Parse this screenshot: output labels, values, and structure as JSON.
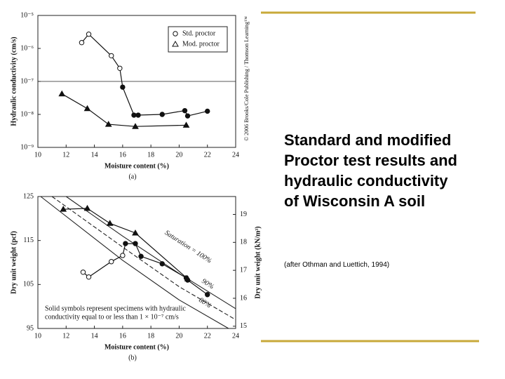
{
  "chart_data": [
    {
      "type": "line",
      "subtitle": "(a)",
      "credit": "© 2006 Brooks/Cole Publishing / Thomson Learning™",
      "xlabel": "Moisture content (%)",
      "ylabel": "Hydraulic conductivity (cm/s)",
      "xlim": [
        10,
        24
      ],
      "xticks": [
        10,
        12,
        14,
        16,
        18,
        20,
        22,
        24
      ],
      "log_y": true,
      "ylim": [
        1e-09,
        1e-05
      ],
      "yticks": [
        {
          "value": 1e-09,
          "label": "10⁻⁹"
        },
        {
          "value": 1e-08,
          "label": "10⁻⁸"
        },
        {
          "value": 1e-07,
          "label": "10⁻⁷"
        },
        {
          "value": 1e-06,
          "label": "10⁻⁶"
        },
        {
          "value": 1e-05,
          "label": "10⁻⁵"
        }
      ],
      "hline": 1e-07,
      "legend": "upper right",
      "series": [
        {
          "name": "Std. proctor",
          "color": "#111111",
          "marker": "circle",
          "x": [
            13.1,
            13.6,
            15.2,
            15.8,
            16.0,
            16.8,
            17.1,
            18.8,
            20.4,
            20.6,
            22.0
          ],
          "values": [
            1.5e-06,
            2.7e-06,
            6e-07,
            2.5e-07,
            6.7e-08,
            9.5e-09,
            9.5e-09,
            1e-08,
            1.3e-08,
            9e-09,
            1.25e-08
          ],
          "filled": [
            false,
            false,
            false,
            false,
            true,
            true,
            true,
            true,
            true,
            true,
            true
          ]
        },
        {
          "name": "Mod. proctor",
          "color": "#111111",
          "marker": "triangle",
          "x": [
            11.7,
            13.5,
            15.0,
            16.9,
            20.5
          ],
          "values": [
            4.2e-08,
            1.5e-08,
            5e-09,
            4.3e-09,
            4.7e-09
          ],
          "filled": [
            true,
            true,
            true,
            true,
            true
          ]
        }
      ]
    },
    {
      "type": "line",
      "subtitle": "(b)",
      "xlabel": "Moisture content (%)",
      "ylabel": "Dry unit weight (pcf)",
      "y2label": "Dry unit weight (kN/m³)",
      "xlim": [
        10,
        24
      ],
      "xticks": [
        10,
        12,
        14,
        16,
        18,
        20,
        22,
        24
      ],
      "ylim": [
        95,
        125
      ],
      "yticks": [
        95,
        105,
        115,
        125
      ],
      "y2lim": [
        14.92,
        19.64
      ],
      "y2ticks": [
        15,
        16,
        17,
        18,
        19
      ],
      "note": [
        "Solid symbols represent specimens with hydraulic",
        "conductivity equal to or less than 1 × 10⁻⁷ cm/s"
      ],
      "curves": [
        {
          "label": "Saturation = 100%",
          "dash": false,
          "x": [
            12,
            16,
            20,
            24
          ],
          "values": [
            125,
            116,
            107.5,
            99.5
          ]
        },
        {
          "label": "90%",
          "dash": true,
          "x": [
            11,
            16,
            20,
            24
          ],
          "values": [
            125,
            113.5,
            104.5,
            97
          ]
        },
        {
          "label": "80%",
          "dash": false,
          "x": [
            10.2,
            16,
            20,
            23.5
          ],
          "values": [
            125,
            110.5,
            101.5,
            95
          ]
        }
      ],
      "series": [
        {
          "color": "#111111",
          "marker": "circle",
          "x": [
            13.2,
            13.6,
            15.2,
            16.0,
            16.2,
            16.9,
            17.3,
            18.8,
            20.5,
            20.6,
            22.0
          ],
          "values": [
            107.8,
            106.7,
            110.2,
            111.6,
            114.3,
            114.3,
            111.4,
            109.7,
            106.5,
            106,
            102.7
          ],
          "filled": [
            false,
            false,
            false,
            false,
            true,
            true,
            true,
            true,
            true,
            true,
            true
          ]
        },
        {
          "color": "#111111",
          "marker": "triangle",
          "x": [
            11.8,
            13.5,
            15.1,
            16.9,
            20.6
          ],
          "values": [
            122.1,
            122.3,
            118.9,
            116.7,
            106.3
          ],
          "filled": [
            true,
            true,
            true,
            true,
            true
          ]
        }
      ]
    }
  ],
  "slide": {
    "heading": "Standard and modified Proctor test results and hydraulic conductivity of Wisconsin A soil",
    "citation": "(after Othman and Luettich, 1994)"
  }
}
